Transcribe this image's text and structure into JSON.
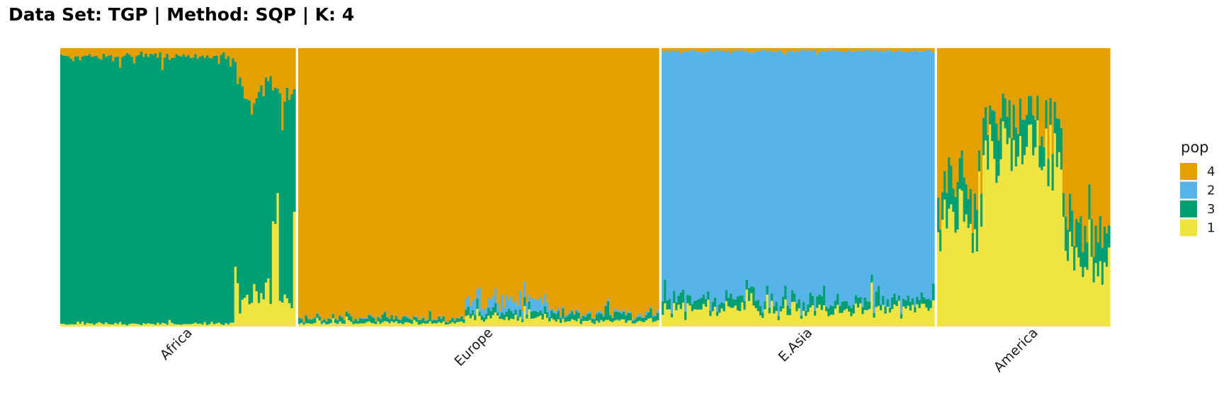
{
  "chart_data": {
    "type": "bar",
    "subtype": "stacked-admixture",
    "title": "Data Set: TGP | Method: SQP | K: 4",
    "xlabel": "",
    "ylabel": "",
    "ylim": [
      0,
      1
    ],
    "grid": false,
    "legend_position": "right",
    "legend": {
      "title": "pop",
      "entries": [
        {
          "label": "4",
          "color": "#E69F00"
        },
        {
          "label": "2",
          "color": "#56B4E9"
        },
        {
          "label": "3",
          "color": "#009E73"
        },
        {
          "label": "1",
          "color": "#F0E442"
        }
      ]
    },
    "stack_order_bottom_to_top": [
      "1",
      "3",
      "2",
      "4"
    ],
    "panels": [
      {
        "name": "Africa",
        "n_individuals": 100,
        "mean_proportions": {
          "1": 0.06,
          "3": 0.82,
          "2": 0.0,
          "4": 0.12
        },
        "segments": [
          {
            "from": 0.0,
            "to": 0.75,
            "profile": "african_core",
            "values": {
              "1": 0.01,
              "3": 0.96,
              "2": 0.0,
              "4": 0.03
            }
          },
          {
            "from": 0.75,
            "to": 1.0,
            "profile": "african_admixed",
            "values": {
              "1": 0.1,
              "3": 0.72,
              "2": 0.0,
              "4": 0.18
            }
          }
        ],
        "spikes": [
          {
            "pos": 0.745,
            "key": "1",
            "value": 0.27
          },
          {
            "pos": 0.83,
            "key": "1",
            "value": 0.13
          },
          {
            "pos": 0.91,
            "key": "1",
            "value": 0.52
          },
          {
            "pos": 0.922,
            "key": "1",
            "value": 0.74
          },
          {
            "pos": 0.993,
            "key": "1",
            "value": 0.48
          },
          {
            "pos": 0.88,
            "key": "4",
            "value": 0.12,
            "pos_from_top": true
          },
          {
            "pos": 0.893,
            "key": "4",
            "value": 0.1,
            "pos_from_top": true
          }
        ]
      },
      {
        "name": "Europe",
        "n_individuals": 160,
        "mean_proportions": {
          "1": 0.015,
          "3": 0.015,
          "2": 0.01,
          "4": 0.96
        },
        "segments": [
          {
            "from": 0.0,
            "to": 0.46,
            "profile": "european_core",
            "values": {
              "1": 0.012,
              "3": 0.014,
              "2": 0.002,
              "4": 0.972
            }
          },
          {
            "from": 0.46,
            "to": 0.7,
            "profile": "european_admixed",
            "values": {
              "1": 0.03,
              "3": 0.02,
              "2": 0.04,
              "4": 0.91
            }
          },
          {
            "from": 0.7,
            "to": 1.0,
            "profile": "european_east",
            "values": {
              "1": 0.02,
              "3": 0.022,
              "2": 0.006,
              "4": 0.952
            }
          }
        ],
        "spikes": []
      },
      {
        "name": "E.Asia",
        "n_individuals": 120,
        "mean_proportions": {
          "1": 0.06,
          "3": 0.03,
          "2": 0.9,
          "4": 0.01
        },
        "segments": [
          {
            "from": 0.0,
            "to": 1.0,
            "profile": "east_asian",
            "values": {
              "1": 0.06,
              "3": 0.03,
              "2": 0.9,
              "4": 0.01
            }
          }
        ],
        "spikes": []
      },
      {
        "name": "America",
        "n_individuals": 80,
        "mean_proportions": {
          "1": 0.4,
          "3": 0.12,
          "2": 0.0,
          "4": 0.48
        },
        "segments": [
          {
            "from": 0.0,
            "to": 0.25,
            "profile": "american_left",
            "values": {
              "1": 0.38,
              "3": 0.12,
              "2": 0.0,
              "4": 0.5
            }
          },
          {
            "from": 0.25,
            "to": 0.72,
            "profile": "american_center",
            "values": {
              "1": 0.62,
              "3": 0.12,
              "2": 0.0,
              "4": 0.26
            }
          },
          {
            "from": 0.72,
            "to": 1.0,
            "profile": "american_right",
            "values": {
              "1": 0.24,
              "3": 0.12,
              "2": 0.0,
              "4": 0.64
            }
          }
        ],
        "spikes": [
          {
            "pos": 0.48,
            "key": "1",
            "value": 1.0
          },
          {
            "pos": 0.53,
            "key": "1",
            "value": 0.92
          },
          {
            "pos": 0.59,
            "key": "1",
            "value": 0.82
          },
          {
            "pos": 0.66,
            "key": "1",
            "value": 0.93
          }
        ]
      }
    ]
  }
}
